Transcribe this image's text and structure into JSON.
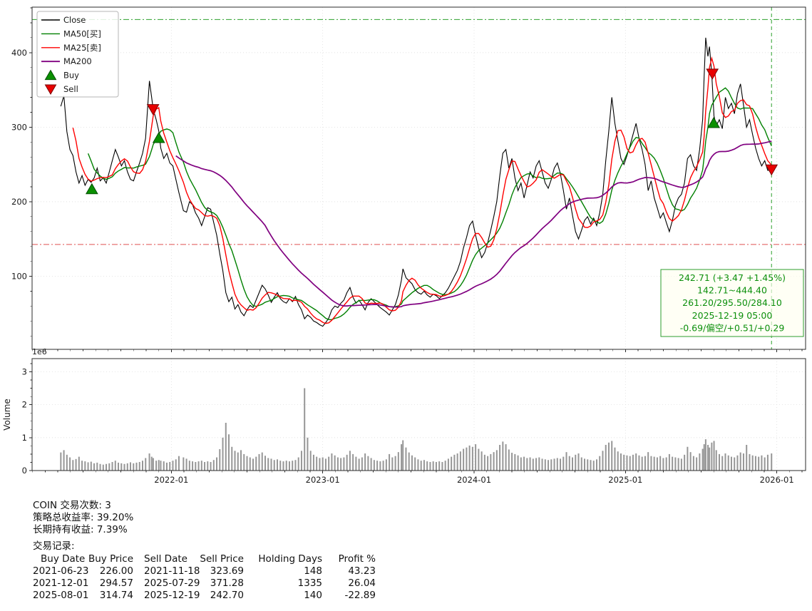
{
  "chart_data": {
    "type": "line",
    "title": "",
    "xlabel": "",
    "ylabel": "",
    "xlim": [
      2021.08,
      2026.19
    ],
    "ylim": [
      2,
      461
    ],
    "yticks": [
      100,
      200,
      300,
      400
    ],
    "xticks": [
      {
        "v": 2022.0,
        "label": "2022-01"
      },
      {
        "v": 2023.0,
        "label": "2023-01"
      },
      {
        "v": 2024.0,
        "label": "2024-01"
      },
      {
        "v": 2025.0,
        "label": "2025-01"
      },
      {
        "v": 2026.0,
        "label": "2026-01"
      }
    ],
    "volume_ylim": [
      0,
      3.4
    ],
    "volume_yticks": [
      0,
      1,
      2,
      3
    ],
    "volume_scale_label": "1e6",
    "volume_axis_label": "Volume",
    "colors": {
      "close": "#000000",
      "ma25": "#ff0000",
      "ma50": "#008000",
      "ma200": "#800080",
      "buy": "#0a9000",
      "buy_edge": "#034d00",
      "sell": "#e80000",
      "sell_edge": "#7a0000",
      "hline_upper": "#2ca02c",
      "hline_lower": "#e05050",
      "vline": "#2ca02c",
      "volume_bar": "#969696",
      "info_text": "#0c8f0c",
      "info_border": "#2e9e2e"
    },
    "legend": [
      {
        "label": "Close",
        "color": "#000000",
        "type": "line"
      },
      {
        "label": "MA50[买]",
        "color": "#008000",
        "type": "line"
      },
      {
        "label": "MA25[卖]",
        "color": "#ff0000",
        "type": "line"
      },
      {
        "label": "MA200",
        "color": "#800080",
        "type": "line"
      },
      {
        "label": "Buy",
        "color": "#0a9000",
        "type": "triangle-up"
      },
      {
        "label": "Sell",
        "color": "#e80000",
        "type": "triangle-down"
      }
    ],
    "moving_averages": [
      {
        "name": "MA50[买]",
        "window": 10,
        "color": "#008000",
        "width": 1.4
      },
      {
        "name": "MA25[卖]",
        "window": 5,
        "color": "#ff0000",
        "width": 1.4
      },
      {
        "name": "MA200",
        "window": 40,
        "color": "#800080",
        "width": 1.7
      }
    ],
    "hlines": [
      {
        "y": 444.4,
        "color": "#2ca02c"
      },
      {
        "y": 142.71,
        "color": "#e05050"
      }
    ],
    "vline": {
      "x": 2025.965,
      "color": "#2ca02c"
    },
    "buy_markers": [
      {
        "x": 2021.475,
        "price": 226.0
      },
      {
        "x": 2021.917,
        "price": 294.57
      },
      {
        "x": 2025.583,
        "price": 314.74
      }
    ],
    "sell_markers": [
      {
        "x": 2021.879,
        "price": 323.69
      },
      {
        "x": 2025.574,
        "price": 371.28
      },
      {
        "x": 2025.965,
        "price": 242.7
      }
    ],
    "info_box": {
      "lines": [
        "242.71 (+3.47 +1.45%)",
        "142.71~444.40",
        "261.20/295.50/284.10",
        "2025-12-19 05:00",
        "-0.69/偏空/+0.51/+0.29"
      ],
      "color": "#0c8f0c"
    },
    "x": [
      2021.27,
      2021.29,
      2021.31,
      2021.33,
      2021.35,
      2021.37,
      2021.39,
      2021.41,
      2021.43,
      2021.45,
      2021.47,
      2021.49,
      2021.51,
      2021.53,
      2021.55,
      2021.57,
      2021.59,
      2021.61,
      2021.63,
      2021.65,
      2021.67,
      2021.69,
      2021.71,
      2021.73,
      2021.75,
      2021.77,
      2021.79,
      2021.81,
      2021.83,
      2021.855,
      2021.87,
      2021.88,
      2021.9,
      2021.917,
      2021.93,
      2021.95,
      2021.97,
      2021.99,
      2022.01,
      2022.03,
      2022.05,
      2022.08,
      2022.1,
      2022.12,
      2022.14,
      2022.16,
      2022.18,
      2022.2,
      2022.22,
      2022.24,
      2022.26,
      2022.28,
      2022.3,
      2022.32,
      2022.34,
      2022.36,
      2022.38,
      2022.4,
      2022.42,
      2022.44,
      2022.46,
      2022.48,
      2022.5,
      2022.52,
      2022.54,
      2022.56,
      2022.58,
      2022.6,
      2022.62,
      2022.64,
      2022.66,
      2022.68,
      2022.7,
      2022.72,
      2022.74,
      2022.76,
      2022.78,
      2022.8,
      2022.82,
      2022.84,
      2022.86,
      2022.88,
      2022.9,
      2022.92,
      2022.94,
      2022.96,
      2022.98,
      2023.0,
      2023.02,
      2023.04,
      2023.06,
      2023.08,
      2023.1,
      2023.12,
      2023.14,
      2023.16,
      2023.18,
      2023.2,
      2023.22,
      2023.24,
      2023.26,
      2023.28,
      2023.3,
      2023.32,
      2023.34,
      2023.36,
      2023.38,
      2023.4,
      2023.42,
      2023.44,
      2023.46,
      2023.48,
      2023.5,
      2023.52,
      2023.53,
      2023.55,
      2023.57,
      2023.59,
      2023.61,
      2023.63,
      2023.65,
      2023.67,
      2023.69,
      2023.71,
      2023.73,
      2023.75,
      2023.77,
      2023.79,
      2023.81,
      2023.83,
      2023.85,
      2023.87,
      2023.89,
      2023.91,
      2023.93,
      2023.95,
      2023.97,
      2023.99,
      2024.01,
      2024.03,
      2024.05,
      2024.07,
      2024.09,
      2024.11,
      2024.13,
      2024.15,
      2024.17,
      2024.19,
      2024.21,
      2024.23,
      2024.25,
      2024.27,
      2024.29,
      2024.31,
      2024.33,
      2024.35,
      2024.37,
      2024.39,
      2024.41,
      2024.43,
      2024.45,
      2024.47,
      2024.49,
      2024.51,
      2024.53,
      2024.55,
      2024.57,
      2024.59,
      2024.61,
      2024.63,
      2024.65,
      2024.67,
      2024.69,
      2024.71,
      2024.73,
      2024.75,
      2024.77,
      2024.79,
      2024.81,
      2024.83,
      2024.85,
      2024.87,
      2024.89,
      2024.91,
      2024.93,
      2024.95,
      2024.97,
      2024.99,
      2025.01,
      2025.03,
      2025.05,
      2025.07,
      2025.09,
      2025.11,
      2025.13,
      2025.15,
      2025.17,
      2025.19,
      2025.21,
      2025.23,
      2025.25,
      2025.27,
      2025.29,
      2025.31,
      2025.33,
      2025.35,
      2025.37,
      2025.39,
      2025.41,
      2025.43,
      2025.45,
      2025.47,
      2025.49,
      2025.51,
      2025.52,
      2025.53,
      2025.545,
      2025.555,
      2025.57,
      2025.585,
      2025.6,
      2025.62,
      2025.64,
      2025.66,
      2025.68,
      2025.7,
      2025.72,
      2025.74,
      2025.76,
      2025.78,
      2025.8,
      2025.82,
      2025.84,
      2025.86,
      2025.88,
      2025.9,
      2025.92,
      2025.94,
      2025.965
    ],
    "close": [
      328,
      342,
      294,
      270,
      262,
      240,
      225,
      235,
      222,
      230,
      226,
      232,
      245,
      228,
      232,
      225,
      240,
      255,
      270,
      260,
      248,
      255,
      240,
      230,
      228,
      240,
      252,
      265,
      285,
      362,
      340,
      324,
      310,
      295,
      272,
      258,
      265,
      252,
      248,
      230,
      212,
      188,
      186,
      200,
      196,
      185,
      178,
      168,
      180,
      192,
      190,
      172,
      155,
      130,
      108,
      78,
      66,
      72,
      56,
      62,
      52,
      47,
      55,
      61,
      58,
      68,
      78,
      88,
      83,
      75,
      65,
      72,
      78,
      70,
      66,
      64,
      70,
      66,
      73,
      62,
      55,
      43,
      48,
      45,
      40,
      38,
      35,
      33,
      38,
      44,
      55,
      60,
      58,
      64,
      68,
      78,
      85,
      72,
      64,
      68,
      62,
      55,
      65,
      70,
      66,
      62,
      58,
      55,
      52,
      48,
      55,
      62,
      75,
      95,
      110,
      98,
      94,
      90,
      82,
      78,
      76,
      80,
      75,
      72,
      76,
      74,
      70,
      74,
      78,
      84,
      92,
      100,
      108,
      120,
      138,
      152,
      168,
      174,
      155,
      138,
      125,
      132,
      145,
      162,
      180,
      200,
      235,
      265,
      270,
      245,
      258,
      232,
      215,
      225,
      205,
      222,
      240,
      232,
      248,
      255,
      240,
      225,
      218,
      230,
      245,
      252,
      238,
      215,
      190,
      205,
      182,
      160,
      150,
      162,
      175,
      180,
      170,
      178,
      168,
      185,
      210,
      255,
      295,
      340,
      305,
      282,
      258,
      250,
      262,
      275,
      290,
      305,
      285,
      270,
      250,
      215,
      228,
      205,
      192,
      178,
      185,
      172,
      160,
      175,
      195,
      205,
      210,
      225,
      258,
      263,
      248,
      242,
      270,
      310,
      368,
      420,
      395,
      408,
      371,
      315,
      302,
      310,
      298,
      340,
      325,
      332,
      318,
      345,
      358,
      330,
      300,
      310,
      290,
      272,
      258,
      248,
      255,
      242,
      243
    ],
    "volume": [
      0.55,
      0.62,
      0.48,
      0.4,
      0.32,
      0.35,
      0.42,
      0.3,
      0.28,
      0.25,
      0.27,
      0.22,
      0.24,
      0.2,
      0.18,
      0.2,
      0.22,
      0.26,
      0.3,
      0.24,
      0.22,
      0.2,
      0.22,
      0.25,
      0.22,
      0.24,
      0.26,
      0.3,
      0.38,
      0.52,
      0.42,
      0.38,
      0.3,
      0.32,
      0.3,
      0.28,
      0.24,
      0.26,
      0.3,
      0.34,
      0.44,
      0.4,
      0.36,
      0.3,
      0.28,
      0.26,
      0.28,
      0.3,
      0.26,
      0.28,
      0.26,
      0.32,
      0.4,
      0.65,
      1.0,
      1.45,
      1.1,
      0.72,
      0.6,
      0.55,
      0.62,
      0.5,
      0.44,
      0.4,
      0.36,
      0.42,
      0.5,
      0.55,
      0.45,
      0.38,
      0.36,
      0.32,
      0.34,
      0.3,
      0.28,
      0.3,
      0.28,
      0.3,
      0.32,
      0.4,
      0.6,
      2.5,
      1.0,
      0.6,
      0.48,
      0.42,
      0.38,
      0.4,
      0.36,
      0.42,
      0.52,
      0.46,
      0.4,
      0.38,
      0.4,
      0.48,
      0.6,
      0.5,
      0.42,
      0.36,
      0.4,
      0.52,
      0.44,
      0.38,
      0.32,
      0.3,
      0.28,
      0.3,
      0.34,
      0.5,
      0.4,
      0.44,
      0.56,
      0.8,
      0.92,
      0.7,
      0.55,
      0.46,
      0.4,
      0.34,
      0.3,
      0.32,
      0.28,
      0.26,
      0.28,
      0.26,
      0.28,
      0.26,
      0.3,
      0.36,
      0.42,
      0.48,
      0.52,
      0.58,
      0.66,
      0.7,
      0.76,
      0.72,
      0.8,
      0.66,
      0.58,
      0.48,
      0.44,
      0.5,
      0.56,
      0.62,
      0.78,
      0.88,
      0.8,
      0.64,
      0.54,
      0.5,
      0.46,
      0.4,
      0.42,
      0.38,
      0.4,
      0.36,
      0.38,
      0.4,
      0.36,
      0.34,
      0.32,
      0.34,
      0.36,
      0.38,
      0.36,
      0.42,
      0.56,
      0.44,
      0.4,
      0.48,
      0.52,
      0.4,
      0.36,
      0.34,
      0.32,
      0.3,
      0.34,
      0.44,
      0.6,
      0.78,
      0.85,
      0.9,
      0.7,
      0.58,
      0.52,
      0.48,
      0.46,
      0.44,
      0.48,
      0.52,
      0.46,
      0.42,
      0.44,
      0.56,
      0.44,
      0.42,
      0.4,
      0.44,
      0.38,
      0.4,
      0.5,
      0.42,
      0.4,
      0.38,
      0.36,
      0.48,
      0.72,
      0.56,
      0.44,
      0.4,
      0.52,
      0.66,
      0.8,
      0.95,
      0.78,
      0.7,
      0.85,
      0.9,
      0.62,
      0.5,
      0.44,
      0.52,
      0.46,
      0.42,
      0.4,
      0.46,
      0.55,
      0.52,
      0.78,
      0.5,
      0.46,
      0.44,
      0.42,
      0.46,
      0.4,
      0.48,
      0.52
    ]
  },
  "summary": {
    "line1": "COIN 交易次数: 3",
    "line2": "策略总收益率: 39.20%",
    "line3": "长期持有收益: 7.39%",
    "line4": "交易记录:",
    "table": {
      "headers": [
        "Buy Date",
        "Buy Price",
        "Sell Date",
        "Sell Price",
        "Holding Days",
        "Profit %"
      ],
      "rows": [
        [
          "2021-06-23",
          "226.00",
          "2021-11-18",
          "323.69",
          "148",
          "43.23"
        ],
        [
          "2021-12-01",
          "294.57",
          "2025-07-29",
          "371.28",
          "1335",
          "26.04"
        ],
        [
          "2025-08-01",
          "314.74",
          "2025-12-19",
          "242.70",
          "140",
          "-22.89"
        ]
      ]
    }
  }
}
